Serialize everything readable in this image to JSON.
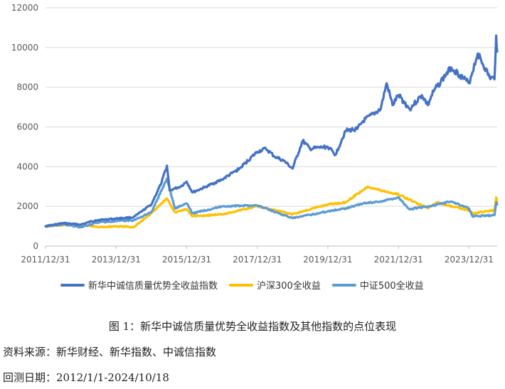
{
  "chart_data": {
    "type": "line",
    "ylim": [
      0,
      12000
    ],
    "yticks": [
      0,
      2000,
      4000,
      6000,
      8000,
      10000,
      12000
    ],
    "xlim": [
      "2011-12-31",
      "2024-10-18"
    ],
    "xticks": [
      "2011/12/31",
      "2013/12/31",
      "2015/12/31",
      "2017/12/31",
      "2019/12/31",
      "2021/12/31",
      "2023/12/31"
    ],
    "grid": "horizontal",
    "legend_position": "bottom",
    "series": [
      {
        "name": "新华中诚信质量优势全收益指数",
        "color": "#4472C4",
        "points": [
          [
            "2012-01-01",
            1000
          ],
          [
            "2012-06-30",
            1150
          ],
          [
            "2012-12-31",
            1080
          ],
          [
            "2013-05-31",
            1300
          ],
          [
            "2013-12-31",
            1380
          ],
          [
            "2014-06-30",
            1450
          ],
          [
            "2014-12-31",
            2100
          ],
          [
            "2015-04-15",
            3200
          ],
          [
            "2015-06-10",
            4050
          ],
          [
            "2015-07-08",
            2800
          ],
          [
            "2015-08-31",
            2900
          ],
          [
            "2015-10-31",
            3000
          ],
          [
            "2015-12-31",
            3250
          ],
          [
            "2016-02-29",
            2700
          ],
          [
            "2016-06-30",
            2950
          ],
          [
            "2016-12-31",
            3350
          ],
          [
            "2017-06-30",
            3900
          ],
          [
            "2017-12-31",
            4750
          ],
          [
            "2018-03-31",
            4900
          ],
          [
            "2018-06-30",
            4500
          ],
          [
            "2018-09-30",
            4300
          ],
          [
            "2018-12-31",
            3900
          ],
          [
            "2019-04-15",
            5300
          ],
          [
            "2019-06-30",
            4900
          ],
          [
            "2019-12-31",
            5000
          ],
          [
            "2020-03-20",
            4600
          ],
          [
            "2020-06-30",
            5800
          ],
          [
            "2020-10-31",
            5900
          ],
          [
            "2020-12-31",
            6300
          ],
          [
            "2021-06-30",
            6900
          ],
          [
            "2021-08-31",
            8200
          ],
          [
            "2021-10-31",
            7100
          ],
          [
            "2021-12-31",
            7600
          ],
          [
            "2022-04-26",
            6900
          ],
          [
            "2022-08-31",
            7600
          ],
          [
            "2022-10-31",
            7100
          ],
          [
            "2022-12-31",
            7800
          ],
          [
            "2023-06-30",
            9000
          ],
          [
            "2023-09-30",
            8600
          ],
          [
            "2023-12-31",
            8200
          ],
          [
            "2024-03-31",
            9700
          ],
          [
            "2024-07-31",
            8500
          ],
          [
            "2024-09-20",
            8400
          ],
          [
            "2024-10-08",
            10600
          ],
          [
            "2024-10-18",
            9800
          ]
        ]
      },
      {
        "name": "沪深300全收益",
        "color": "#FFC000",
        "points": [
          [
            "2012-01-01",
            1000
          ],
          [
            "2012-06-30",
            1050
          ],
          [
            "2012-12-31",
            1080
          ],
          [
            "2013-06-30",
            950
          ],
          [
            "2013-12-31",
            1000
          ],
          [
            "2014-06-30",
            950
          ],
          [
            "2014-12-31",
            1650
          ],
          [
            "2015-06-10",
            2400
          ],
          [
            "2015-08-31",
            1700
          ],
          [
            "2015-12-31",
            1850
          ],
          [
            "2016-02-29",
            1500
          ],
          [
            "2016-12-31",
            1600
          ],
          [
            "2017-12-31",
            2000
          ],
          [
            "2018-12-31",
            1600
          ],
          [
            "2019-12-31",
            2100
          ],
          [
            "2020-06-30",
            2200
          ],
          [
            "2021-02-18",
            3000
          ],
          [
            "2021-06-30",
            2800
          ],
          [
            "2021-12-31",
            2600
          ],
          [
            "2022-10-31",
            1900
          ],
          [
            "2023-01-31",
            2200
          ],
          [
            "2023-12-31",
            1800
          ],
          [
            "2024-02-05",
            1650
          ],
          [
            "2024-09-20",
            1800
          ],
          [
            "2024-10-08",
            2450
          ],
          [
            "2024-10-18",
            2250
          ]
        ]
      },
      {
        "name": "中证500全收益",
        "color": "#5B9BD5",
        "points": [
          [
            "2012-01-01",
            1000
          ],
          [
            "2012-06-30",
            1100
          ],
          [
            "2012-12-31",
            950
          ],
          [
            "2013-06-30",
            1200
          ],
          [
            "2013-12-31",
            1250
          ],
          [
            "2014-06-30",
            1300
          ],
          [
            "2014-12-31",
            1700
          ],
          [
            "2015-06-10",
            3400
          ],
          [
            "2015-08-31",
            1900
          ],
          [
            "2015-12-31",
            2150
          ],
          [
            "2016-02-29",
            1650
          ],
          [
            "2016-12-31",
            2000
          ],
          [
            "2017-12-31",
            2050
          ],
          [
            "2018-12-31",
            1400
          ],
          [
            "2019-12-31",
            1750
          ],
          [
            "2020-06-30",
            1900
          ],
          [
            "2020-12-31",
            2150
          ],
          [
            "2021-06-30",
            2250
          ],
          [
            "2021-12-31",
            2450
          ],
          [
            "2022-04-26",
            1850
          ],
          [
            "2022-12-31",
            2050
          ],
          [
            "2023-06-30",
            2250
          ],
          [
            "2023-12-31",
            1900
          ],
          [
            "2024-02-05",
            1500
          ],
          [
            "2024-09-20",
            1550
          ],
          [
            "2024-10-08",
            2200
          ],
          [
            "2024-10-18",
            2100
          ]
        ]
      }
    ]
  },
  "caption": "图 1：新华中诚信质量优势全收益指数及其他指数的点位表现",
  "source_note": "资料来源：新华财经、新华指数、中诚信指数",
  "period_note": "回测日期：2012/1/1-2024/10/18"
}
